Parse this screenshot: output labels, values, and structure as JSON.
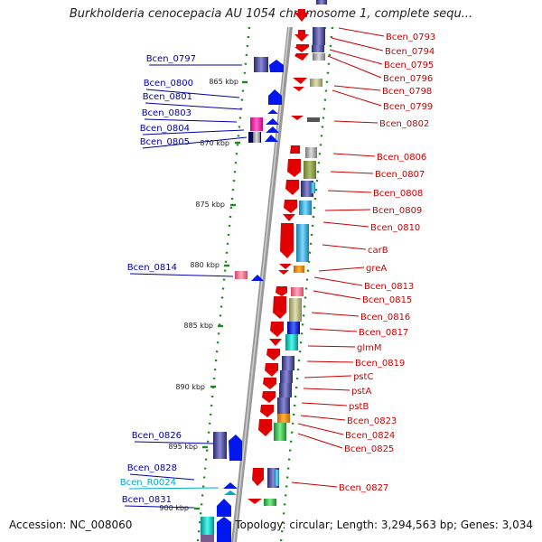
{
  "title": "Burkholderia cenocepacia AU 1054 chromosome 1, complete sequ...",
  "footer": {
    "accession": "Accession: NC_008060",
    "summary": "Topology: circular; Length: 3,294,563 bp; Genes: 3,034"
  },
  "colors": {
    "left_label": "#0000aa",
    "right_label": "#cc0000",
    "rna_label": "#00aacc",
    "backbone": "#999999"
  },
  "scale_ticks": [
    "865 kbp",
    "870 kbp",
    "875 kbp",
    "880 kbp",
    "885 kbp",
    "890 kbp",
    "895 kbp",
    "900 kbp"
  ],
  "left_labels": [
    "Bcen_0797",
    "Bcen_0800",
    "Bcen_0801",
    "Bcen_0803",
    "Bcen_0804",
    "Bcen_0805",
    "Bcen_0814",
    "Bcen_0826",
    "Bcen_0828",
    "Bcen_R0024",
    "Bcen_0831"
  ],
  "right_labels": [
    "Bcen_0793",
    "Bcen_0794",
    "Bcen_0795",
    "Bcen_0796",
    "Bcen_0798",
    "Bcen_0799",
    "Bcen_0802",
    "Bcen_0806",
    "Bcen_0807",
    "Bcen_0808",
    "Bcen_0809",
    "Bcen_0810",
    "carB",
    "greA",
    "Bcen_0813",
    "Bcen_0815",
    "Bcen_0816",
    "Bcen_0817",
    "glmM",
    "Bcen_0819",
    "pstC",
    "pstA",
    "pstB",
    "Bcen_0823",
    "Bcen_0824",
    "Bcen_0825",
    "Bcen_0827"
  ]
}
